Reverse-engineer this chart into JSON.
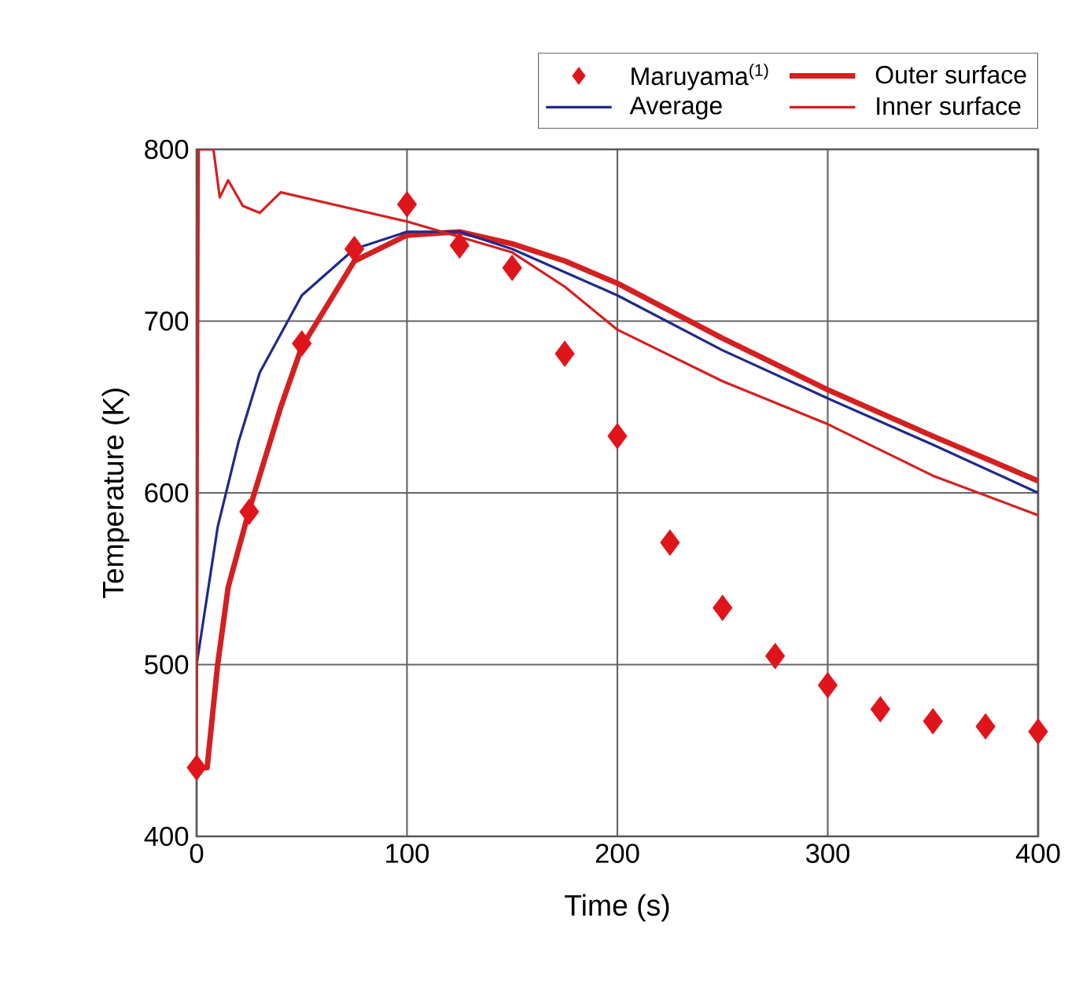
{
  "chart_data": {
    "type": "line",
    "xlabel": "Time (s)",
    "ylabel": "Temperature (K)",
    "xlim": [
      0,
      400
    ],
    "ylim": [
      400,
      800
    ],
    "xticks": [
      0,
      100,
      200,
      300,
      400
    ],
    "yticks": [
      400,
      500,
      600,
      700,
      800
    ],
    "grid": true,
    "legend": "top right",
    "line_style": "solid",
    "series": [
      {
        "name": "Maruyama$^{(1)}$",
        "type": "scatter",
        "marker": "diamond",
        "color": "#e0151b",
        "x": [
          0,
          25,
          50,
          75,
          100,
          125,
          150,
          175,
          200,
          225,
          250,
          275,
          300,
          325,
          350,
          375,
          400
        ],
        "values": [
          440,
          589,
          687,
          742,
          768,
          744,
          731,
          681,
          633,
          571,
          533,
          505,
          488,
          474,
          467,
          464,
          461
        ]
      },
      {
        "name": "Outer surface",
        "color": "#d42020",
        "x": [
          0,
          5,
          10,
          15,
          25,
          40,
          50,
          75,
          100,
          125,
          150,
          175,
          200,
          250,
          300,
          350,
          400
        ],
        "values": [
          440,
          440,
          500,
          545,
          590,
          650,
          685,
          735,
          750,
          752,
          745,
          735,
          722,
          690,
          660,
          633,
          607
        ]
      },
      {
        "name": "Average",
        "color": "#1f2a8c",
        "x": [
          0,
          5,
          10,
          20,
          30,
          50,
          75,
          100,
          125,
          150,
          200,
          250,
          300,
          350,
          400
        ],
        "values": [
          500,
          540,
          580,
          630,
          670,
          715,
          742,
          752,
          752,
          742,
          715,
          683,
          655,
          628,
          600
        ]
      },
      {
        "name": "Inner surface",
        "color": "#d42020",
        "x": [
          0,
          1,
          8,
          11,
          15,
          22,
          30,
          40,
          100,
          150,
          175,
          200,
          250,
          300,
          350,
          400
        ],
        "values": [
          440,
          800,
          800,
          772,
          782,
          767,
          763,
          775,
          758,
          740,
          720,
          695,
          665,
          640,
          610,
          587
        ]
      }
    ]
  }
}
